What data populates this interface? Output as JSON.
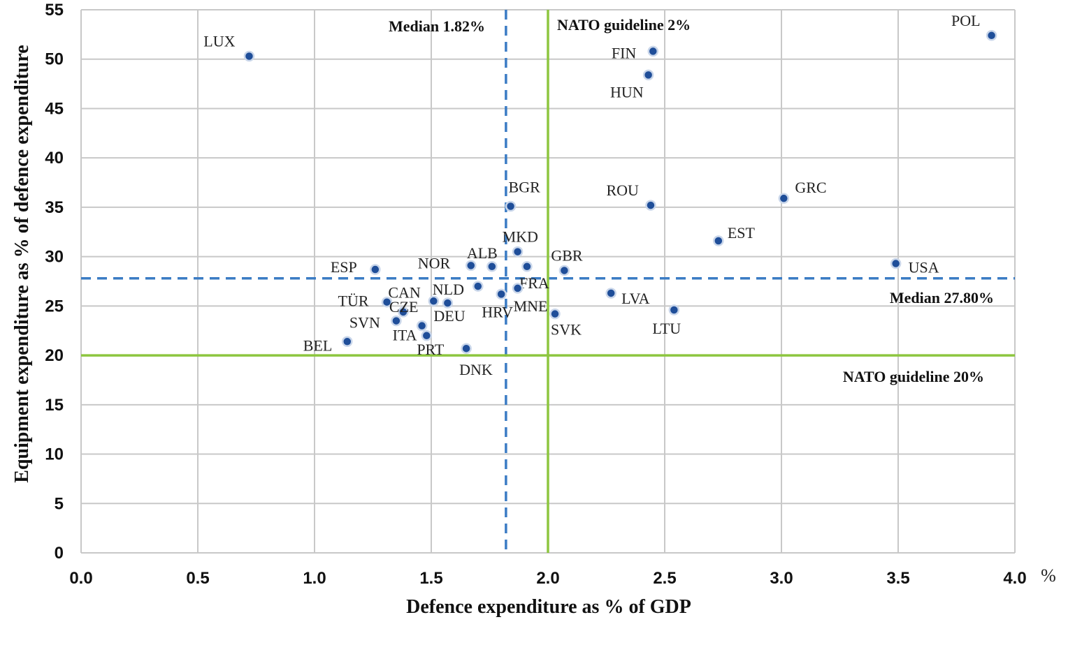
{
  "chart_data": {
    "type": "scatter",
    "xlabel": "Defence expenditure as % of GDP",
    "ylabel": "Equipment expenditure as % of defence expenditure",
    "x_unit": "%",
    "xlim": [
      0.0,
      4.0
    ],
    "ylim": [
      0,
      55
    ],
    "x_ticks": [
      "0.0",
      "0.5",
      "1.0",
      "1.5",
      "2.0",
      "2.5",
      "3.0",
      "3.5",
      "4.0"
    ],
    "y_ticks": [
      "0",
      "5",
      "10",
      "15",
      "20",
      "25",
      "30",
      "35",
      "40",
      "45",
      "50",
      "55"
    ],
    "grid": true,
    "point_color": "#1f4e99",
    "median_color": "#3b7cc4",
    "guideline_color": "#8dc63f",
    "points": [
      {
        "label": "POL",
        "x": 3.9,
        "y": 52.4
      },
      {
        "label": "LUX",
        "x": 0.72,
        "y": 50.3
      },
      {
        "label": "FIN",
        "x": 2.45,
        "y": 50.8
      },
      {
        "label": "HUN",
        "x": 2.43,
        "y": 48.4
      },
      {
        "label": "GRC",
        "x": 3.01,
        "y": 35.9
      },
      {
        "label": "ROU",
        "x": 2.44,
        "y": 35.2
      },
      {
        "label": "BGR",
        "x": 1.84,
        "y": 35.1
      },
      {
        "label": "EST",
        "x": 2.73,
        "y": 31.6
      },
      {
        "label": "MKD",
        "x": 1.87,
        "y": 30.5
      },
      {
        "label": "USA",
        "x": 3.49,
        "y": 29.3
      },
      {
        "label": "ALB",
        "x": 1.76,
        "y": 29.0
      },
      {
        "label": "NOR",
        "x": 1.67,
        "y": 29.1
      },
      {
        "label": "GBR",
        "x": 2.07,
        "y": 28.6
      },
      {
        "label": "ESP",
        "x": 1.26,
        "y": 28.7
      },
      {
        "label": "FRA",
        "x": 1.91,
        "y": 29.0
      },
      {
        "label": "NLD",
        "x": 1.7,
        "y": 27.0
      },
      {
        "label": "LVA",
        "x": 2.27,
        "y": 26.3
      },
      {
        "label": "HRV",
        "x": 1.8,
        "y": 26.2
      },
      {
        "label": "MNE",
        "x": 1.87,
        "y": 26.8
      },
      {
        "label": "CAN",
        "x": 1.51,
        "y": 25.5
      },
      {
        "label": "TÜR",
        "x": 1.31,
        "y": 25.4
      },
      {
        "label": "DEU",
        "x": 1.57,
        "y": 25.3
      },
      {
        "label": "CZE",
        "x": 1.38,
        "y": 24.4
      },
      {
        "label": "LTU",
        "x": 2.54,
        "y": 24.6
      },
      {
        "label": "SVK",
        "x": 2.03,
        "y": 24.2
      },
      {
        "label": "SVN",
        "x": 1.35,
        "y": 23.5
      },
      {
        "label": "ITA",
        "x": 1.46,
        "y": 23.0
      },
      {
        "label": "PRT",
        "x": 1.48,
        "y": 22.0
      },
      {
        "label": "BEL",
        "x": 1.14,
        "y": 21.4
      },
      {
        "label": "DNK",
        "x": 1.65,
        "y": 20.7
      }
    ],
    "reference_lines": [
      {
        "kind": "median",
        "axis": "x",
        "value": 1.82,
        "label": "Median 1.82%"
      },
      {
        "kind": "median",
        "axis": "y",
        "value": 27.8,
        "label": "Median 27.80%"
      },
      {
        "kind": "guideline",
        "axis": "x",
        "value": 2.0,
        "label": "NATO guideline 2%"
      },
      {
        "kind": "guideline",
        "axis": "y",
        "value": 20,
        "label": "NATO guideline 20%"
      }
    ]
  }
}
